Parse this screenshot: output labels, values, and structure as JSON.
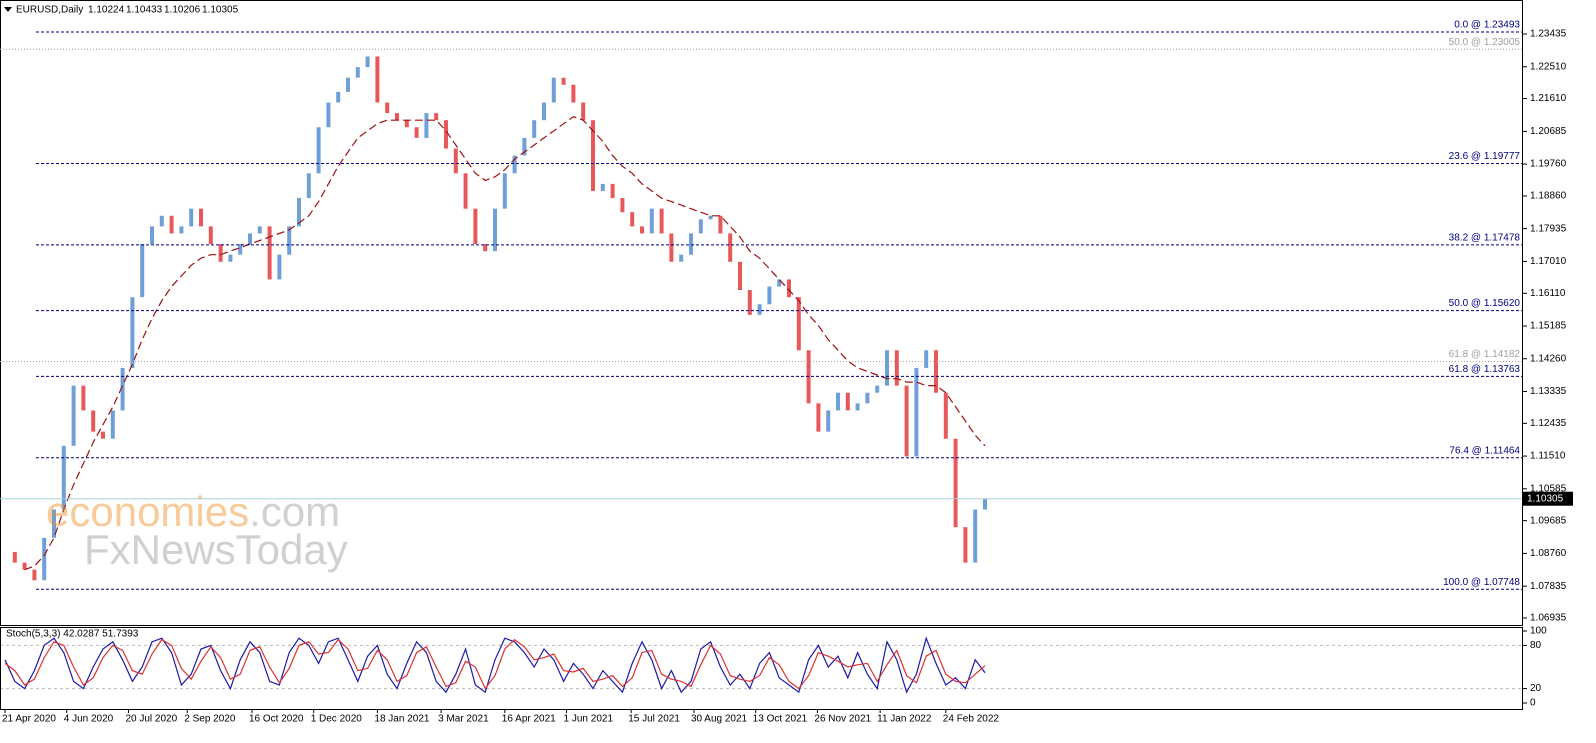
{
  "header": {
    "symbol": "EURUSD,Daily",
    "ohlc": [
      "1.10224",
      "1.10433",
      "1.10206",
      "1.10305"
    ]
  },
  "watermark": {
    "brand": "economies",
    "domain": ".com",
    "second": "FxNewsToday"
  },
  "chart_data": [
    {
      "type": "candlestick",
      "xlim": [
        0,
        100
      ],
      "ylim": [
        1.06737,
        1.24396
      ],
      "yticks": [
        1.23435,
        {
          "value": 1.2251,
          "label": "1.22510"
        },
        {
          "value": 1.2161,
          "label": "1.21610"
        },
        1.20685,
        {
          "value": 1.1976,
          "label": "1.19760"
        },
        {
          "value": 1.1886,
          "label": "1.18860"
        },
        1.17935,
        {
          "value": 1.1701,
          "label": "1.17010"
        },
        {
          "value": 1.1611,
          "label": "1.16110"
        },
        1.15185,
        {
          "value": 1.1426,
          "label": "1.14260"
        },
        1.13335,
        1.12435,
        {
          "value": 1.1151,
          "label": "1.11510"
        },
        1.10585,
        1.09685,
        {
          "value": 1.0876,
          "label": "1.08760"
        },
        1.07835,
        1.06935
      ],
      "last_price": 1.10305,
      "levels": [
        {
          "label": "0.0 @ 1.23493",
          "value": 1.23493,
          "color": "#000080"
        },
        {
          "label": "50.0 @ 1.23005",
          "value": 1.23005,
          "color": "#a0a0a0"
        },
        {
          "label": "23.6 @ 1.19777",
          "value": 1.19777,
          "color": "#000080"
        },
        {
          "label": "38.2 @ 1.17478",
          "value": 1.17478,
          "color": "#000080"
        },
        {
          "label": "50.0 @ 1.15620",
          "value": 1.1562,
          "color": "#000080"
        },
        {
          "label": "61.8 @ 1.14182",
          "value": 1.14182,
          "color": "#a0a0a0"
        },
        {
          "label": "61.8 @ 1.13763",
          "value": 1.13763,
          "color": "#000080"
        },
        {
          "label": "76.4 @ 1.11464",
          "value": 1.11464,
          "color": "#000080"
        },
        {
          "label": "100.0 @ 1.07748",
          "value": 1.07748,
          "color": "#000080"
        }
      ],
      "series": [
        {
          "color_up": "#6f9fd8",
          "color_down": "#e8585a",
          "values": [
            1.088,
            1.085,
            1.083,
            1.08,
            1.092,
            1.1,
            1.118,
            1.135,
            1.128,
            1.122,
            1.12,
            1.128,
            1.14,
            1.16,
            1.175,
            1.18,
            1.183,
            1.178,
            1.18,
            1.185,
            1.18,
            1.175,
            1.17,
            1.172,
            1.175,
            1.178,
            1.18,
            1.165,
            1.172,
            1.18,
            1.188,
            1.195,
            1.208,
            1.215,
            1.218,
            1.222,
            1.225,
            1.228,
            1.215,
            1.212,
            1.21,
            1.208,
            1.205,
            1.212,
            1.21,
            1.202,
            1.195,
            1.185,
            1.175,
            1.173,
            1.185,
            1.195,
            1.2,
            1.205,
            1.21,
            1.215,
            1.222,
            1.22,
            1.215,
            1.21,
            1.19,
            1.192,
            1.188,
            1.184,
            1.18,
            1.178,
            1.185,
            1.178,
            1.17,
            1.172,
            1.178,
            1.182,
            1.183,
            1.178,
            1.17,
            1.162,
            1.155,
            1.158,
            1.163,
            1.165,
            1.16,
            1.145,
            1.13,
            1.122,
            1.128,
            1.133,
            1.128,
            1.13,
            1.133,
            1.135,
            1.145,
            1.135,
            1.115,
            1.14,
            1.145,
            1.133,
            1.12,
            1.095,
            1.085,
            1.1,
            1.103
          ]
        },
        {
          "color": "#a01010",
          "dashed": true,
          "values": [
            null,
            null,
            1.083,
            1.084,
            1.087,
            1.092,
            1.1,
            1.107,
            1.113,
            1.119,
            1.124,
            1.129,
            1.135,
            1.141,
            1.148,
            1.154,
            1.159,
            1.163,
            1.166,
            1.169,
            1.171,
            1.172,
            1.172,
            1.173,
            1.174,
            1.175,
            1.176,
            1.177,
            1.178,
            1.179,
            1.181,
            1.183,
            1.187,
            1.192,
            1.197,
            1.201,
            1.205,
            1.207,
            1.209,
            1.21,
            1.21,
            1.21,
            1.21,
            1.21,
            1.21,
            1.207,
            1.203,
            1.199,
            1.195,
            1.193,
            1.194,
            1.196,
            1.199,
            1.201,
            1.203,
            1.205,
            1.207,
            1.209,
            1.211,
            1.21,
            1.207,
            1.204,
            1.2,
            1.197,
            1.195,
            1.192,
            1.19,
            1.188,
            1.187,
            1.186,
            1.185,
            1.184,
            1.183,
            1.183,
            1.18,
            1.177,
            1.173,
            1.171,
            1.168,
            1.165,
            1.162,
            1.159,
            1.155,
            1.152,
            1.148,
            1.145,
            1.142,
            1.14,
            1.139,
            1.138,
            1.137,
            1.137,
            1.136,
            1.136,
            1.135,
            1.135,
            1.133,
            1.129,
            1.125,
            1.121,
            1.118
          ]
        }
      ]
    },
    {
      "type": "line",
      "title": "Stoch(5,3,3) 42.0287 51.7393",
      "xlim": [
        0,
        100
      ],
      "ylim": [
        0,
        100
      ],
      "yticks": [
        0,
        20,
        80,
        100
      ],
      "levels": [
        20,
        80
      ],
      "xticks": [
        {
          "value": 0,
          "label": "21 Apr 2020"
        },
        {
          "value": 6.3,
          "label": "4 Jun 2020"
        },
        {
          "value": 12.6,
          "label": "20 Jul 2020"
        },
        {
          "value": 18.6,
          "label": "2 Sep 2020"
        },
        {
          "value": 25.2,
          "label": "16 Oct 2020"
        },
        {
          "value": 31.5,
          "label": "1 Dec 2020"
        },
        {
          "value": 38,
          "label": "18 Jan 2021"
        },
        {
          "value": 44.5,
          "label": "3 Mar 2021"
        },
        {
          "value": 51,
          "label": "16 Apr 2021"
        },
        {
          "value": 57.3,
          "label": "1 Jun 2021"
        },
        {
          "value": 63.9,
          "label": "15 Jul 2021"
        },
        {
          "value": 70.3,
          "label": "30 Aug 2021"
        },
        {
          "value": 76.6,
          "label": "13 Oct 2021"
        },
        {
          "value": 82.9,
          "label": "26 Nov 2021"
        },
        {
          "value": 89.3,
          "label": "11 Jan 2022"
        },
        {
          "value": 96,
          "label": "24 Feb 2022"
        }
      ],
      "series": [
        {
          "color": "#1a1aa8",
          "values": [
            60,
            30,
            20,
            45,
            80,
            90,
            70,
            30,
            20,
            50,
            75,
            85,
            60,
            30,
            50,
            85,
            90,
            70,
            25,
            40,
            75,
            80,
            45,
            20,
            60,
            85,
            70,
            30,
            25,
            70,
            90,
            80,
            55,
            85,
            90,
            60,
            30,
            65,
            80,
            40,
            20,
            55,
            85,
            70,
            30,
            15,
            40,
            75,
            25,
            15,
            60,
            90,
            85,
            70,
            50,
            75,
            60,
            30,
            55,
            40,
            20,
            45,
            30,
            15,
            55,
            85,
            60,
            20,
            45,
            15,
            30,
            75,
            85,
            50,
            25,
            40,
            20,
            55,
            70,
            35,
            25,
            15,
            60,
            80,
            50,
            65,
            35,
            70,
            40,
            20,
            85,
            60,
            15,
            40,
            90,
            55,
            25,
            35,
            20,
            60,
            42.0287
          ]
        },
        {
          "color": "#e03030",
          "values": [
            55,
            45,
            25,
            33,
            63,
            85,
            80,
            50,
            25,
            35,
            63,
            80,
            73,
            45,
            40,
            68,
            88,
            80,
            48,
            33,
            58,
            78,
            63,
            33,
            40,
            73,
            78,
            50,
            28,
            48,
            80,
            85,
            68,
            70,
            88,
            75,
            45,
            48,
            73,
            60,
            30,
            38,
            70,
            78,
            50,
            23,
            28,
            58,
            50,
            20,
            38,
            75,
            88,
            78,
            60,
            63,
            68,
            45,
            43,
            48,
            30,
            33,
            38,
            23,
            35,
            70,
            73,
            40,
            33,
            30,
            23,
            53,
            80,
            68,
            38,
            33,
            30,
            38,
            63,
            53,
            30,
            20,
            38,
            70,
            65,
            58,
            50,
            53,
            55,
            30,
            53,
            73,
            38,
            28,
            65,
            73,
            40,
            30,
            28,
            40,
            51.7393
          ]
        }
      ]
    }
  ]
}
